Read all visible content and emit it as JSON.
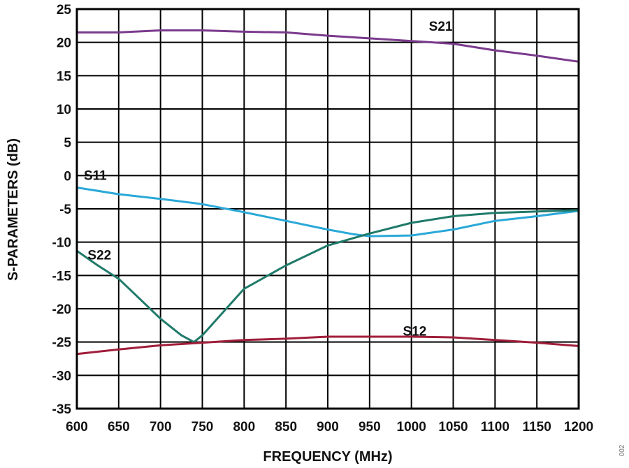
{
  "chart_data": {
    "type": "line",
    "xlabel": "FREQUENCY (MHz)",
    "ylabel": "S-PARAMETERS (dB)",
    "xlim": [
      600,
      1200
    ],
    "ylim": [
      -35,
      25
    ],
    "x_ticks": [
      600,
      650,
      700,
      750,
      800,
      850,
      900,
      950,
      1000,
      1050,
      1100,
      1150,
      1200
    ],
    "y_ticks": [
      25,
      20,
      15,
      10,
      5,
      0,
      -5,
      -10,
      -15,
      -20,
      -25,
      -30,
      -35
    ],
    "grid": true,
    "series": [
      {
        "name": "S21",
        "color": "#7a3a8c",
        "x": [
          600,
          650,
          700,
          750,
          800,
          850,
          900,
          950,
          1000,
          1050,
          1100,
          1150,
          1200
        ],
        "y": [
          21.5,
          21.5,
          21.8,
          21.8,
          21.6,
          21.5,
          21.0,
          20.6,
          20.2,
          19.8,
          18.8,
          18.0,
          17.1
        ]
      },
      {
        "name": "S11",
        "color": "#2aa8d8",
        "x": [
          600,
          650,
          700,
          750,
          800,
          850,
          900,
          930,
          950,
          1000,
          1050,
          1100,
          1150,
          1200
        ],
        "y": [
          -1.8,
          -2.8,
          -3.5,
          -4.3,
          -5.5,
          -6.8,
          -8.1,
          -8.8,
          -9.1,
          -9.0,
          -8.1,
          -6.8,
          -6.1,
          -5.3
        ]
      },
      {
        "name": "S22",
        "color": "#1f7a6a",
        "x": [
          600,
          625,
          650,
          675,
          700,
          725,
          740,
          750,
          775,
          800,
          850,
          900,
          950,
          1000,
          1050,
          1100,
          1150,
          1200
        ],
        "y": [
          -11.3,
          -13.5,
          -15.5,
          -18.5,
          -21.5,
          -24.0,
          -25.0,
          -24.0,
          -20.5,
          -17.0,
          -13.5,
          -10.5,
          -8.7,
          -7.1,
          -6.1,
          -5.6,
          -5.4,
          -5.2
        ]
      },
      {
        "name": "S12",
        "color": "#a01e3a",
        "x": [
          600,
          650,
          700,
          750,
          800,
          850,
          900,
          950,
          1000,
          1050,
          1100,
          1150,
          1200
        ],
        "y": [
          -26.8,
          -26.1,
          -25.5,
          -25.1,
          -24.7,
          -24.5,
          -24.2,
          -24.2,
          -24.2,
          -24.3,
          -24.7,
          -25.1,
          -25.6
        ]
      }
    ],
    "series_labels": [
      {
        "series": "S21",
        "x": 1035,
        "y": 22.4
      },
      {
        "series": "S11",
        "x": 622,
        "y": 0.0
      },
      {
        "series": "S22",
        "x": 627,
        "y": -12.0
      },
      {
        "series": "S12",
        "x": 1004,
        "y": -23.4
      }
    ]
  },
  "watermark": "002"
}
